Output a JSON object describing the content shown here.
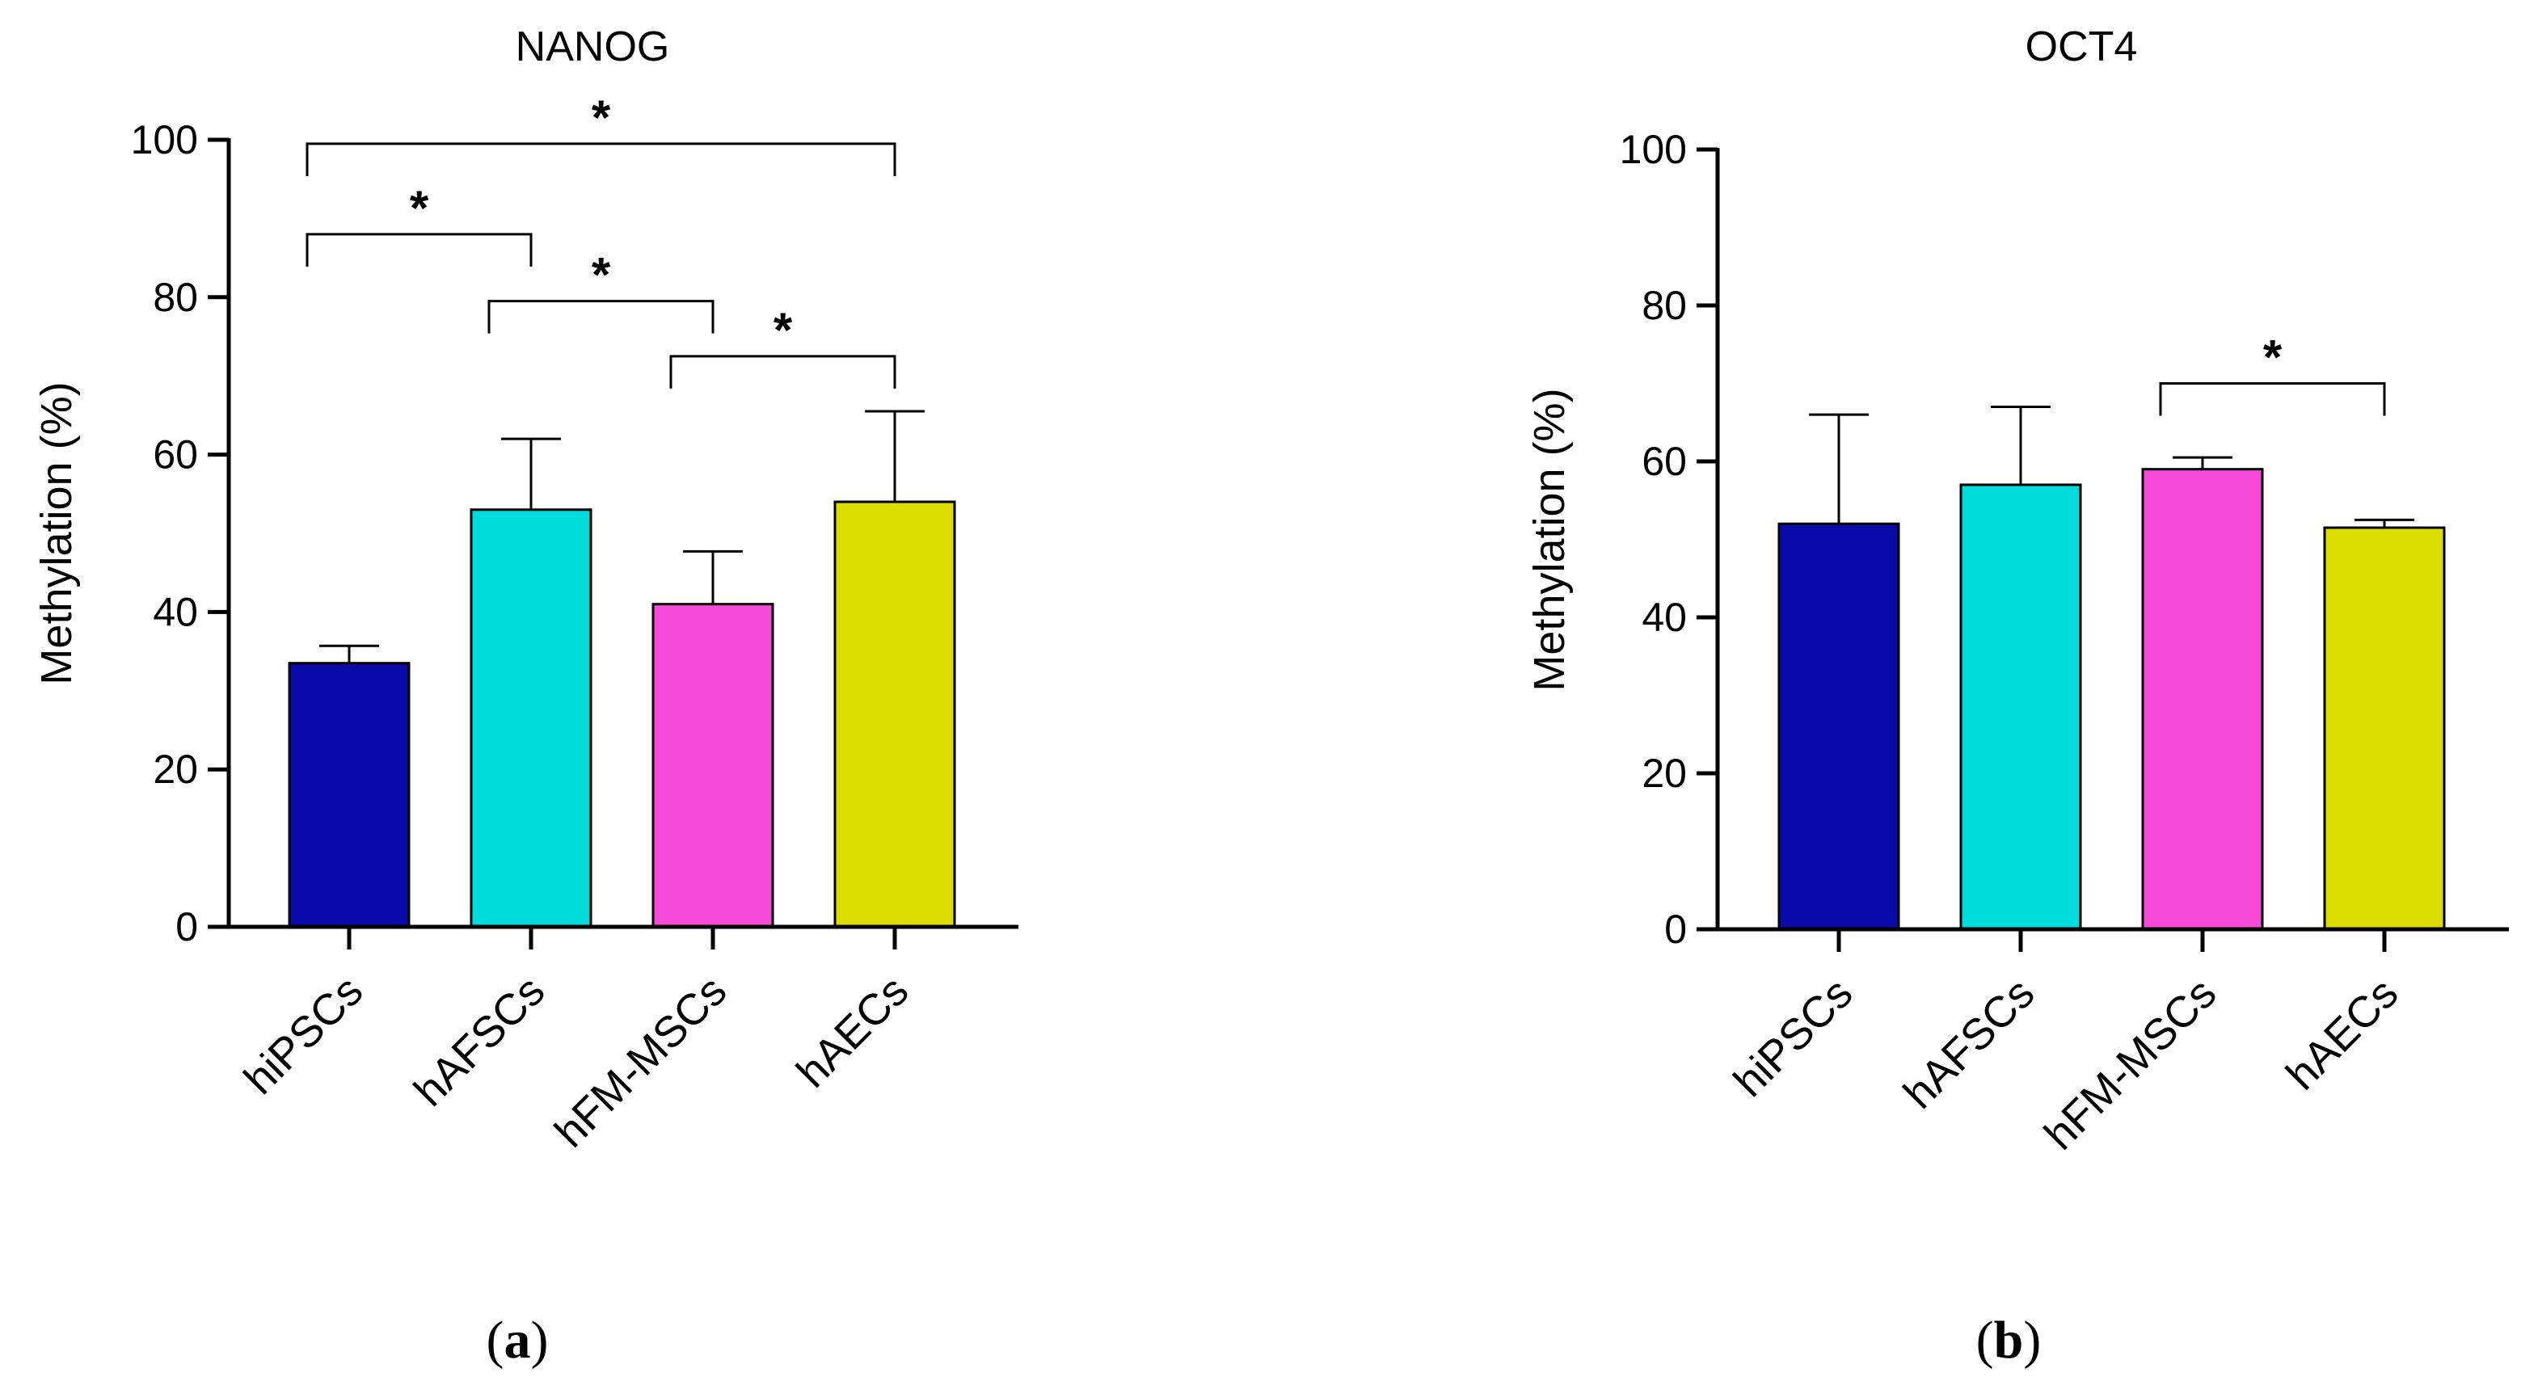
{
  "chart_data": [
    {
      "type": "bar",
      "panel_label": "a",
      "title": "NANOG",
      "ylabel": "Methylation (%)",
      "xlabel": "",
      "ylim": [
        0,
        100
      ],
      "yticks": [
        "0",
        "20",
        "40",
        "60",
        "80",
        "100"
      ],
      "categories": [
        "hiPSCs",
        "hAFSCs",
        "hFM-MSCs",
        "hAECs"
      ],
      "values": [
        33.5,
        53,
        41,
        54
      ],
      "errors": [
        2.2,
        9,
        6.7,
        11.5
      ],
      "colors": [
        "#0a0aa8",
        "#00dcdc",
        "#f74ad8",
        "#dcdc00"
      ],
      "significance": [
        {
          "from": 0,
          "to": 1,
          "level": 88,
          "label": "*"
        },
        {
          "from": 1,
          "to": 2,
          "level": 79.5,
          "label": "*"
        },
        {
          "from": 2,
          "to": 3,
          "level": 72.5,
          "label": "*"
        },
        {
          "from": 0,
          "to": 3,
          "level": 99.5,
          "label": "*"
        }
      ]
    },
    {
      "type": "bar",
      "panel_label": "b",
      "title": "OCT4",
      "ylabel": "Methylation (%)",
      "xlabel": "",
      "ylim": [
        0,
        100
      ],
      "yticks": [
        "0",
        "20",
        "40",
        "60",
        "80",
        "100"
      ],
      "categories": [
        "hiPSCs",
        "hAFSCs",
        "hFM-MSCs",
        "hAECs"
      ],
      "values": [
        52,
        57,
        59,
        51.5
      ],
      "errors": [
        14,
        10,
        1.5,
        1
      ],
      "colors": [
        "#0a0aa8",
        "#00dcdc",
        "#f74ad8",
        "#dcdc00"
      ],
      "significance": [
        {
          "from": 2,
          "to": 3,
          "level": 70,
          "label": "*"
        }
      ]
    }
  ]
}
